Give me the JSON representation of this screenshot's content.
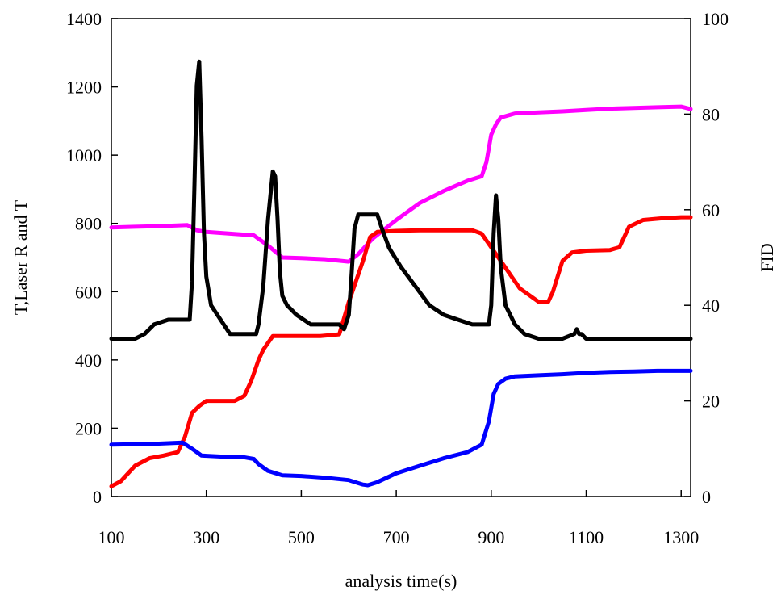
{
  "chart_data": {
    "type": "line",
    "title": "",
    "xlabel": "analysis time(s)",
    "ylabel": "T,Laser R and T",
    "y2label": "FID",
    "xlim": [
      100,
      1320
    ],
    "ylim": [
      0,
      1400
    ],
    "y2lim": [
      0,
      100
    ],
    "x_ticks": [
      100,
      300,
      500,
      700,
      900,
      1100,
      1300
    ],
    "y_ticks": [
      0,
      200,
      400,
      600,
      800,
      1000,
      1200,
      1400
    ],
    "y2_ticks": [
      0,
      20,
      40,
      60,
      80,
      100
    ],
    "grid": false,
    "legend": "none",
    "series": [
      {
        "color": "#ff00ff",
        "axis": "left",
        "x": [
          100,
          150,
          200,
          260,
          280,
          300,
          350,
          400,
          430,
          460,
          500,
          550,
          600,
          620,
          650,
          700,
          750,
          800,
          850,
          880,
          890,
          900,
          910,
          920,
          950,
          1000,
          1050,
          1100,
          1150,
          1200,
          1250,
          1300,
          1320
        ],
        "y": [
          788,
          790,
          792,
          795,
          780,
          775,
          770,
          765,
          735,
          700,
          698,
          695,
          688,
          710,
          755,
          810,
          860,
          895,
          925,
          938,
          980,
          1060,
          1090,
          1110,
          1122,
          1125,
          1128,
          1132,
          1136,
          1138,
          1140,
          1142,
          1135
        ]
      },
      {
        "color": "#ff0000",
        "axis": "left",
        "x": [
          100,
          120,
          150,
          180,
          210,
          240,
          255,
          270,
          285,
          300,
          330,
          360,
          380,
          395,
          410,
          420,
          430,
          440,
          470,
          500,
          540,
          580,
          600,
          630,
          645,
          660,
          700,
          750,
          800,
          860,
          880,
          920,
          960,
          1000,
          1020,
          1030,
          1050,
          1070,
          1100,
          1150,
          1170,
          1190,
          1220,
          1260,
          1300,
          1320
        ],
        "y": [
          30,
          45,
          90,
          112,
          120,
          130,
          175,
          245,
          265,
          280,
          280,
          280,
          295,
          340,
          400,
          430,
          450,
          470,
          470,
          470,
          470,
          475,
          570,
          690,
          760,
          775,
          778,
          780,
          780,
          780,
          770,
          690,
          610,
          570,
          570,
          600,
          690,
          715,
          720,
          722,
          730,
          790,
          810,
          815,
          818,
          818
        ]
      },
      {
        "color": "#0000ff",
        "axis": "left",
        "x": [
          100,
          150,
          200,
          250,
          270,
          290,
          330,
          380,
          400,
          410,
          430,
          460,
          500,
          550,
          600,
          630,
          640,
          660,
          700,
          750,
          800,
          850,
          880,
          895,
          905,
          915,
          930,
          950,
          1000,
          1050,
          1100,
          1150,
          1200,
          1250,
          1300,
          1320
        ],
        "y": [
          152,
          153,
          155,
          158,
          140,
          120,
          117,
          115,
          110,
          95,
          75,
          62,
          60,
          55,
          48,
          35,
          33,
          42,
          68,
          90,
          112,
          130,
          152,
          220,
          300,
          330,
          345,
          352,
          355,
          358,
          362,
          365,
          366,
          368,
          368,
          368
        ]
      },
      {
        "color": "#000000",
        "axis": "right",
        "x": [
          100,
          150,
          170,
          190,
          220,
          265,
          270,
          275,
          280,
          285,
          290,
          295,
          300,
          310,
          330,
          350,
          380,
          405,
          410,
          420,
          430,
          440,
          445,
          450,
          455,
          460,
          470,
          490,
          520,
          580,
          590,
          600,
          605,
          612,
          620,
          630,
          640,
          660,
          670,
          685,
          710,
          740,
          770,
          800,
          830,
          860,
          895,
          900,
          905,
          910,
          915,
          920,
          930,
          950,
          970,
          1000,
          1050,
          1075,
          1080,
          1085,
          1090,
          1100,
          1130,
          1200,
          1250,
          1320
        ],
        "y": [
          33,
          33,
          34,
          36,
          37,
          37,
          45,
          65,
          86,
          91,
          75,
          55,
          46,
          40,
          37,
          34,
          34,
          34,
          36,
          44,
          58,
          68,
          67,
          58,
          47,
          42,
          40,
          38,
          36,
          36,
          35,
          38,
          45,
          56,
          59,
          59,
          59,
          59,
          56,
          52,
          48,
          44,
          40,
          38,
          37,
          36,
          36,
          40,
          55,
          63,
          58,
          48,
          40,
          36,
          34,
          33,
          33,
          34,
          35,
          34,
          34,
          33,
          33,
          33,
          33,
          33
        ]
      }
    ]
  }
}
